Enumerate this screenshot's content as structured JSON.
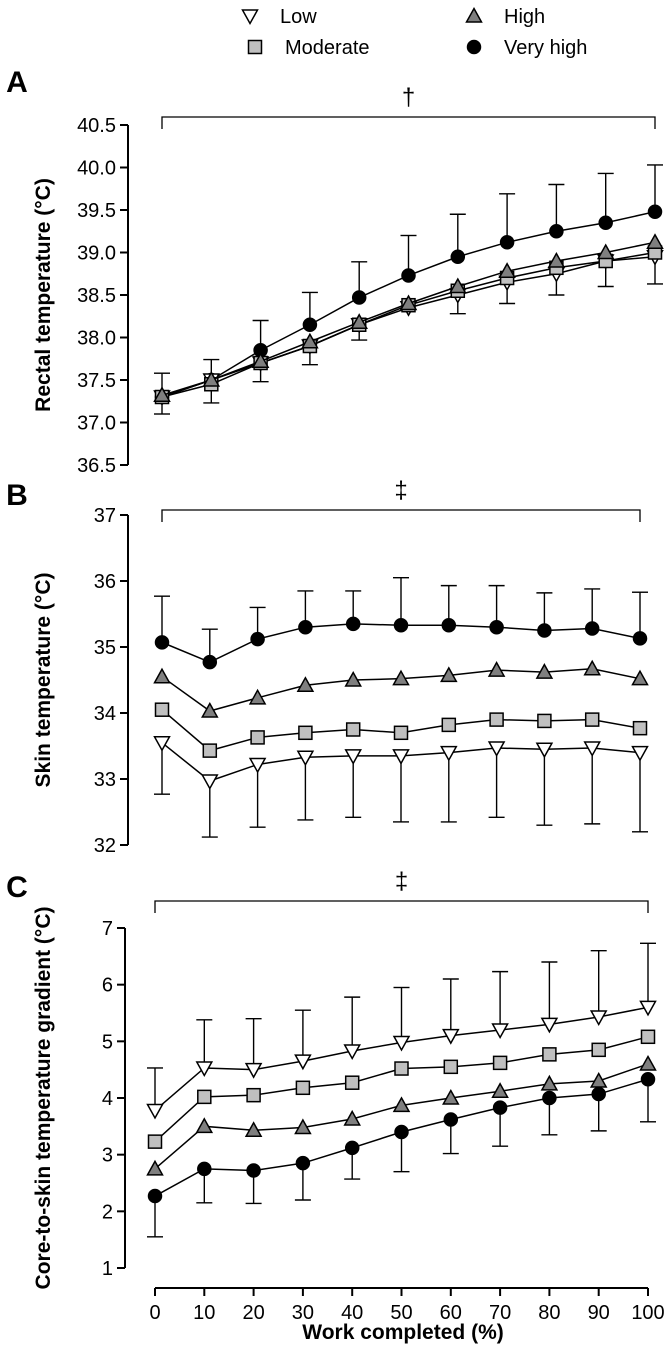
{
  "legend": [
    {
      "name": "Low",
      "marker": "triangle-down"
    },
    {
      "name": "High",
      "marker": "triangle-up"
    },
    {
      "name": "Moderate",
      "marker": "square"
    },
    {
      "name": "Very high",
      "marker": "circle"
    }
  ],
  "colors": {
    "Low": "#ffffff",
    "Moderate": "#c0c0c0",
    "High": "#7f7f7f",
    "Very high": "#000000",
    "stroke": "#000000"
  },
  "xlabel": "Work completed (%)",
  "x_ticks": [
    "0",
    "10",
    "20",
    "30",
    "40",
    "50",
    "60",
    "70",
    "80",
    "90",
    "100"
  ],
  "chart_data": [
    {
      "panel": "A",
      "type": "line",
      "ylabel": "Rectal temperature (°C)",
      "xlabel": "Work completed (%)",
      "ylim": [
        36.5,
        40.5
      ],
      "yticks": [
        "36.5",
        "37.0",
        "37.5",
        "38.0",
        "38.5",
        "39.0",
        "39.5",
        "40.0",
        "40.5"
      ],
      "significance": "†",
      "x": [
        0,
        10,
        20,
        30,
        40,
        50,
        60,
        70,
        80,
        90,
        100
      ],
      "series": [
        {
          "name": "Low",
          "values": [
            37.3,
            37.5,
            37.7,
            37.9,
            38.15,
            38.35,
            38.5,
            38.65,
            38.75,
            38.9,
            38.95
          ],
          "error": [
            0,
            0,
            0,
            0,
            0,
            0,
            0.22,
            0.25,
            0.25,
            0.3,
            0.32
          ],
          "error_dir": "down"
        },
        {
          "name": "Moderate",
          "values": [
            37.3,
            37.45,
            37.7,
            37.9,
            38.15,
            38.38,
            38.55,
            38.7,
            38.82,
            38.9,
            39.0
          ],
          "error": [
            0.2,
            0.22,
            0.22,
            0.22,
            0.18,
            0,
            0,
            0,
            0,
            0,
            0
          ],
          "error_dir": "down"
        },
        {
          "name": "High",
          "values": [
            37.32,
            37.5,
            37.72,
            37.95,
            38.18,
            38.4,
            38.6,
            38.78,
            38.9,
            39.0,
            39.12
          ],
          "error": [],
          "error_dir": "none"
        },
        {
          "name": "Very high",
          "values": [
            37.3,
            37.5,
            37.85,
            38.15,
            38.47,
            38.73,
            38.95,
            39.12,
            39.25,
            39.35,
            39.48
          ],
          "error": [
            0.28,
            0.24,
            0.35,
            0.38,
            0.42,
            0.47,
            0.5,
            0.57,
            0.55,
            0.58,
            0.55
          ],
          "error_dir": "up"
        }
      ]
    },
    {
      "panel": "B",
      "type": "line",
      "ylabel": "Skin temperature (°C)",
      "xlabel": "Work completed (%)",
      "ylim": [
        32,
        37
      ],
      "yticks": [
        "32",
        "33",
        "34",
        "35",
        "36",
        "37"
      ],
      "significance": "‡",
      "x": [
        0,
        10,
        20,
        30,
        40,
        50,
        60,
        70,
        80,
        90,
        100
      ],
      "series": [
        {
          "name": "Low",
          "values": [
            33.55,
            32.97,
            33.22,
            33.33,
            33.35,
            33.35,
            33.4,
            33.47,
            33.45,
            33.47,
            33.4
          ],
          "error": [
            0.78,
            0.85,
            0.95,
            0.95,
            0.93,
            1.0,
            1.05,
            1.05,
            1.15,
            1.15,
            1.2
          ],
          "error_dir": "down"
        },
        {
          "name": "Moderate",
          "values": [
            34.05,
            33.43,
            33.63,
            33.7,
            33.75,
            33.7,
            33.82,
            33.9,
            33.88,
            33.9,
            33.77
          ],
          "error": [],
          "error_dir": "none"
        },
        {
          "name": "High",
          "values": [
            34.55,
            34.03,
            34.23,
            34.42,
            34.5,
            34.52,
            34.57,
            34.65,
            34.62,
            34.67,
            34.52
          ],
          "error": [],
          "error_dir": "none"
        },
        {
          "name": "Very high",
          "values": [
            35.07,
            34.77,
            35.12,
            35.3,
            35.35,
            35.33,
            35.33,
            35.3,
            35.25,
            35.28,
            35.13
          ],
          "error": [
            0.7,
            0.5,
            0.48,
            0.55,
            0.5,
            0.72,
            0.6,
            0.63,
            0.57,
            0.6,
            0.7
          ],
          "error_dir": "up"
        }
      ]
    },
    {
      "panel": "C",
      "type": "line",
      "ylabel": "Core-to-skin temperature gradient (°C)",
      "xlabel": "Work completed (%)",
      "ylim": [
        1,
        7
      ],
      "yticks": [
        "1",
        "2",
        "3",
        "4",
        "5",
        "6",
        "7"
      ],
      "significance": "‡",
      "x": [
        0,
        10,
        20,
        30,
        40,
        50,
        60,
        70,
        80,
        90,
        100
      ],
      "series": [
        {
          "name": "Low",
          "values": [
            3.78,
            4.53,
            4.5,
            4.65,
            4.83,
            4.98,
            5.1,
            5.2,
            5.3,
            5.43,
            5.6
          ],
          "error": [
            0.75,
            0.85,
            0.9,
            0.9,
            0.95,
            0.97,
            1.0,
            1.03,
            1.1,
            1.17,
            1.13
          ],
          "error_dir": "up"
        },
        {
          "name": "Moderate",
          "values": [
            3.23,
            4.02,
            4.05,
            4.18,
            4.27,
            4.52,
            4.55,
            4.62,
            4.77,
            4.85,
            5.08
          ],
          "error": [],
          "error_dir": "none"
        },
        {
          "name": "High",
          "values": [
            2.75,
            3.5,
            3.43,
            3.48,
            3.63,
            3.87,
            4.0,
            4.12,
            4.25,
            4.3,
            4.6
          ],
          "error": [],
          "error_dir": "none"
        },
        {
          "name": "Very high",
          "values": [
            2.27,
            2.75,
            2.72,
            2.85,
            3.12,
            3.4,
            3.62,
            3.83,
            4.0,
            4.07,
            4.33
          ],
          "error": [
            0.72,
            0.6,
            0.58,
            0.65,
            0.55,
            0.7,
            0.6,
            0.68,
            0.65,
            0.65,
            0.75
          ],
          "error_dir": "down"
        }
      ]
    }
  ]
}
